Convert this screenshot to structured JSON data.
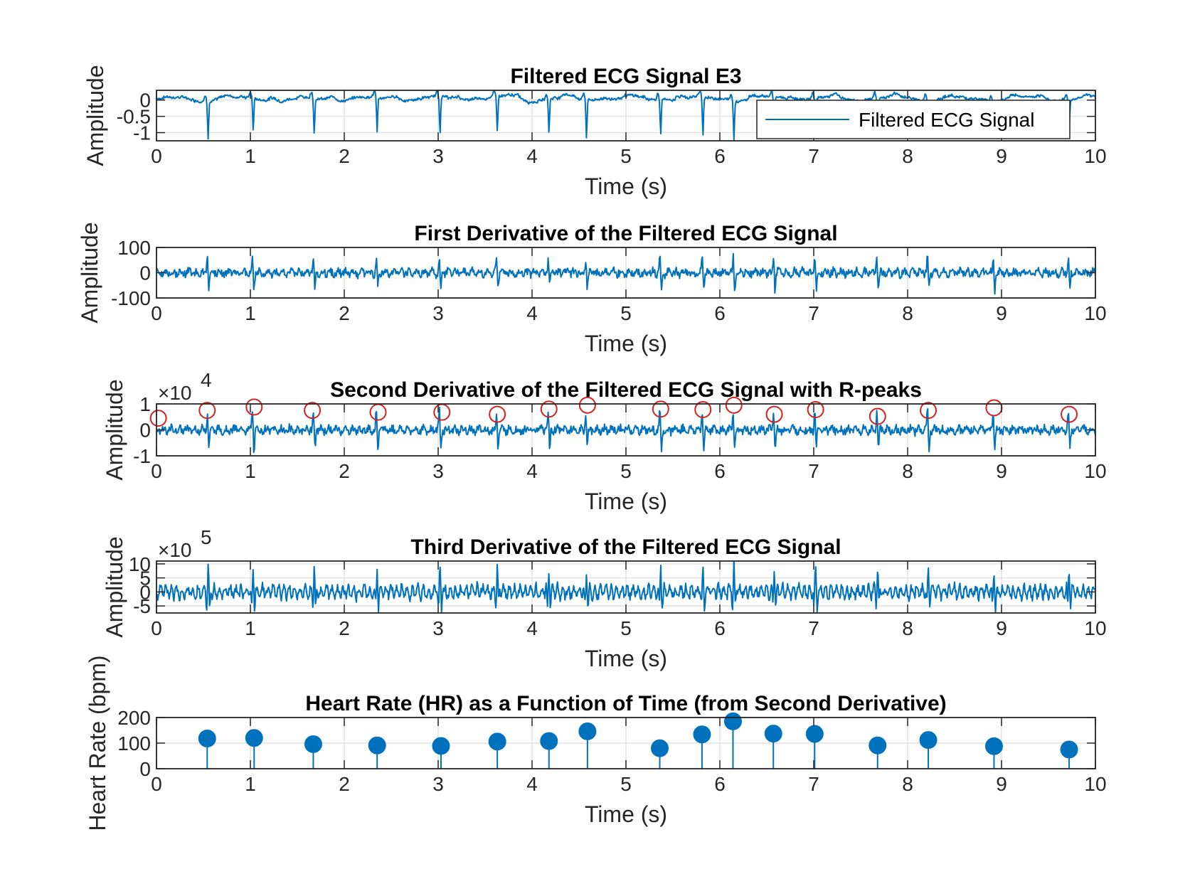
{
  "colors": {
    "line": "#0072BD",
    "marker": "#0072BD",
    "rpeak": "#D62020",
    "grid": "#E1E1E1",
    "axis": "#262626"
  },
  "chart_data": [
    {
      "type": "line",
      "title": "Filtered ECG Signal E3",
      "xlabel": "Time (s)",
      "ylabel": "Amplitude",
      "xlim": [
        0,
        10
      ],
      "ylim": [
        -1.25,
        0.3
      ],
      "xticks": [
        "0",
        "1",
        "2",
        "3",
        "4",
        "5",
        "6",
        "7",
        "8",
        "9",
        "10"
      ],
      "yticks": [
        {
          "v": 0,
          "label": "0"
        },
        {
          "v": -0.5,
          "label": "-0.5"
        },
        {
          "v": -1,
          "label": "-1"
        }
      ],
      "grid": true,
      "legend": {
        "position": "top-right",
        "entries": [
          "Filtered ECG Signal"
        ]
      },
      "series": [
        {
          "name": "Filtered ECG Signal",
          "kind": "ecg",
          "peak_times": [
            0.55,
            1.03,
            1.68,
            2.35,
            3.02,
            3.63,
            4.18,
            4.58,
            5.37,
            5.82,
            6.15,
            6.58,
            7.02,
            7.68,
            8.22,
            8.92,
            9.72
          ],
          "peak_values": [
            -1.1,
            -1.0,
            -1.05,
            -1.1,
            -1.05,
            -1.1,
            -1.05,
            -1.2,
            -1.05,
            -1.2,
            -1.2,
            -1.0,
            -1.0,
            -1.0,
            -1.0,
            -1.0,
            -1.0
          ],
          "baseline": 0.05,
          "noise": 0.1
        }
      ]
    },
    {
      "type": "line",
      "title": "First Derivative of the Filtered ECG Signal",
      "xlabel": "Time (s)",
      "ylabel": "Amplitude",
      "xlim": [
        0,
        10
      ],
      "ylim": [
        -100,
        100
      ],
      "xticks": [
        "0",
        "1",
        "2",
        "3",
        "4",
        "5",
        "6",
        "7",
        "8",
        "9",
        "10"
      ],
      "yticks": [
        {
          "v": 100,
          "label": "100"
        },
        {
          "v": 0,
          "label": "0"
        },
        {
          "v": -100,
          "label": "-100"
        }
      ],
      "grid": true,
      "series": [
        {
          "kind": "deriv",
          "peak_times": [
            0.55,
            1.03,
            1.68,
            2.35,
            3.02,
            3.63,
            4.18,
            4.58,
            5.37,
            5.82,
            6.15,
            6.58,
            7.02,
            7.68,
            8.22,
            8.92,
            9.72
          ],
          "amp": 75,
          "noise": 18
        }
      ]
    },
    {
      "type": "line",
      "title": "Second Derivative of the Filtered ECG Signal with R-peaks",
      "xlabel": "Time (s)",
      "ylabel": "Amplitude",
      "xlim": [
        0,
        10
      ],
      "ylim": [
        -1,
        1
      ],
      "multiplier": "×10",
      "multiplier_exp": "4",
      "xticks": [
        "0",
        "1",
        "2",
        "3",
        "4",
        "5",
        "6",
        "7",
        "8",
        "9",
        "10"
      ],
      "yticks": [
        {
          "v": 1,
          "label": "1"
        },
        {
          "v": 0,
          "label": "0"
        },
        {
          "v": -1,
          "label": "-1"
        }
      ],
      "grid": true,
      "series": [
        {
          "kind": "deriv",
          "peak_times": [
            0.55,
            1.03,
            1.68,
            2.35,
            3.02,
            3.63,
            4.18,
            4.58,
            5.37,
            5.82,
            6.15,
            6.58,
            7.02,
            7.68,
            8.22,
            8.92,
            9.72
          ],
          "amp": 0.85,
          "noise": 0.18
        }
      ],
      "r_peaks": {
        "x": [
          0.02,
          0.54,
          1.04,
          1.66,
          2.36,
          3.04,
          3.63,
          4.18,
          4.59,
          5.37,
          5.82,
          6.15,
          6.58,
          7.02,
          7.68,
          8.22,
          8.92,
          9.72
        ],
        "y": [
          0.45,
          0.75,
          0.88,
          0.75,
          0.68,
          0.68,
          0.6,
          0.8,
          0.95,
          0.8,
          0.78,
          0.95,
          0.6,
          0.78,
          0.52,
          0.75,
          0.85,
          0.6
        ]
      }
    },
    {
      "type": "line",
      "title": "Third Derivative of the Filtered ECG Signal",
      "xlabel": "Time (s)",
      "ylabel": "Amplitude",
      "xlim": [
        0,
        10
      ],
      "ylim": [
        -7.5,
        11
      ],
      "multiplier": "×10",
      "multiplier_exp": "5",
      "xticks": [
        "0",
        "1",
        "2",
        "3",
        "4",
        "5",
        "6",
        "7",
        "8",
        "9",
        "10"
      ],
      "yticks": [
        {
          "v": 10,
          "label": "10"
        },
        {
          "v": 5,
          "label": "5"
        },
        {
          "v": 0,
          "label": "0"
        },
        {
          "v": -5,
          "label": "-5"
        }
      ],
      "grid": true,
      "series": [
        {
          "kind": "deriv3",
          "peak_times": [
            0.55,
            1.03,
            1.68,
            2.35,
            3.02,
            3.63,
            4.18,
            4.58,
            5.37,
            5.82,
            6.15,
            6.58,
            7.02,
            7.68,
            8.22,
            8.92,
            9.72
          ],
          "amp": 9,
          "noise": 2.5
        }
      ]
    },
    {
      "type": "stem",
      "title": "Heart Rate (HR) as a Function of Time (from Second Derivative)",
      "xlabel": "Time (s)",
      "ylabel": "Heart Rate (bpm)",
      "xlim": [
        0,
        10
      ],
      "ylim": [
        0,
        200
      ],
      "xticks": [
        "0",
        "1",
        "2",
        "3",
        "4",
        "5",
        "6",
        "7",
        "8",
        "9",
        "10"
      ],
      "yticks": [
        {
          "v": 200,
          "label": "200"
        },
        {
          "v": 100,
          "label": "100"
        },
        {
          "v": 0,
          "label": "0"
        }
      ],
      "grid": true,
      "x": [
        0.54,
        1.04,
        1.67,
        2.35,
        3.03,
        3.63,
        4.18,
        4.59,
        5.36,
        5.81,
        6.14,
        6.57,
        7.01,
        7.68,
        8.22,
        8.92,
        9.72
      ],
      "y": [
        118,
        120,
        96,
        91,
        89,
        106,
        108,
        146,
        80,
        134,
        185,
        137,
        136,
        91,
        112,
        88,
        75
      ]
    }
  ]
}
